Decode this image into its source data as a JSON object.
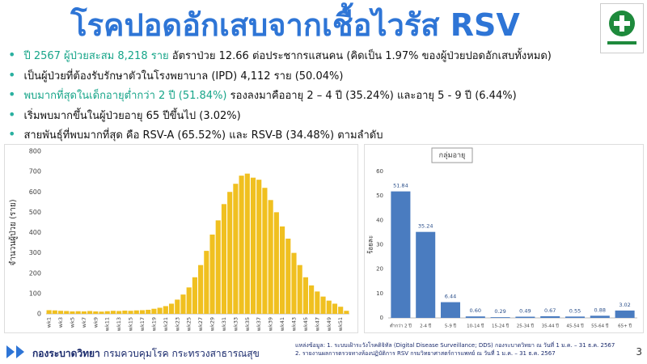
{
  "title": "โรคปอดอักเสบจากเชื้อไวรัส RSV",
  "bullets": [
    [
      "ปี 2567 ผู้ป่วยสะสม 8,218 ราย",
      " อัตราป่วย 12.66 ต่อประชากรแสนคน (คิดเป็น 1.97% ของผู้ป่วยปอดอักเสบทั้งหมด)"
    ],
    [
      "เป็นผู้ป่วยที่ต้องรับรักษาตัวในโรงพยาบาล (IPD) 4,112 ราย (50.04%)"
    ],
    [
      "พบมากที่สุดในเด็กอายุต่ำกว่า 2 ปี (51.84%)",
      " รองลงมาคืออายุ 2 – 4 ปี (35.24%) และอายุ 5 - 9 ปี (6.44%)"
    ],
    [
      "เริ่มพบมากขึ้นในผู้ป่วยอายุ 65 ปีขึ้นไป (3.02%)"
    ],
    [
      "สายพันธุ์ที่พบมากที่สุด คือ RSV-A (65.52%) และ RSV-B (34.48%) ตามลำดับ"
    ]
  ],
  "chart_data": [
    {
      "type": "bar",
      "y_label": "จำนวนผู้ป่วย (ราย)",
      "color": "#f0c020",
      "categories": [
        "wk1",
        null,
        "wk3",
        null,
        "wk5",
        null,
        "wk7",
        null,
        "wk9",
        null,
        "wk11",
        null,
        "wk13",
        null,
        "wk15",
        null,
        "wk17",
        null,
        "wk19",
        null,
        "wk21",
        null,
        "wk23",
        null,
        "wk25",
        null,
        "wk27",
        null,
        "wk29",
        null,
        "wk31",
        null,
        "wk33",
        null,
        "wk35",
        null,
        "wk37",
        null,
        "wk39",
        null,
        "wk41",
        null,
        "wk43",
        null,
        "wk45",
        null,
        "wk47",
        null,
        "wk49",
        null,
        "wk51",
        null
      ],
      "values": [
        18,
        17,
        15,
        14,
        12,
        13,
        12,
        14,
        12,
        11,
        13,
        15,
        14,
        16,
        15,
        17,
        18,
        20,
        25,
        30,
        38,
        50,
        70,
        95,
        130,
        180,
        240,
        310,
        390,
        460,
        540,
        600,
        640,
        680,
        690,
        670,
        660,
        620,
        560,
        500,
        430,
        370,
        300,
        240,
        180,
        140,
        110,
        85,
        65,
        50,
        35,
        15
      ],
      "ylim": [
        0,
        800
      ],
      "yticks": [
        0,
        100,
        200,
        300,
        400,
        500,
        600,
        700,
        800
      ],
      "grid": false
    },
    {
      "type": "bar",
      "title": "กลุ่มอายุ",
      "y_label": "ร้อยละ",
      "color": "#4a7cc0",
      "categories": [
        "ต่ำกว่า 2 ปี",
        "2-4 ปี",
        "5-9 ปี",
        "10-14 ปี",
        "15-24 ปี",
        "25-34 ปี",
        "35-44 ปี",
        "45-54 ปี",
        "55-64 ปี",
        "65+ ปี"
      ],
      "values": [
        51.84,
        35.24,
        6.44,
        0.6,
        0.29,
        0.49,
        0.67,
        0.55,
        0.88,
        3.02
      ],
      "value_labels": [
        "51.84",
        "35.24",
        "6.44",
        "0.60",
        "0.29",
        "0.49",
        "0.67",
        "0.55",
        "0.88",
        "3.02"
      ],
      "ylim": [
        0,
        60
      ],
      "yticks": [
        0,
        10,
        20,
        30,
        40,
        50,
        60
      ],
      "grid": false
    }
  ],
  "footer": {
    "org": "กองระบาดวิทยา",
    "dept": "กรมควบคุมโรค กระทรวงสาธารณสุข",
    "sources": [
      "แหล่งข้อมูล: 1. ระบบเฝ้าระวังโรคดิจิทัล (Digital Disease Surveillance; DDS) กองระบาดวิทยา ณ วันที่ 1 ม.ค. – 31 ธ.ค. 2567",
      "2. รายงานผลการตรวจทางห้องปฏิบัติการ RSV กรมวิทยาศาสตร์การแพทย์ ณ วันที่ 1 ม.ค. – 31 ธ.ค. 2567"
    ],
    "page": "3"
  }
}
